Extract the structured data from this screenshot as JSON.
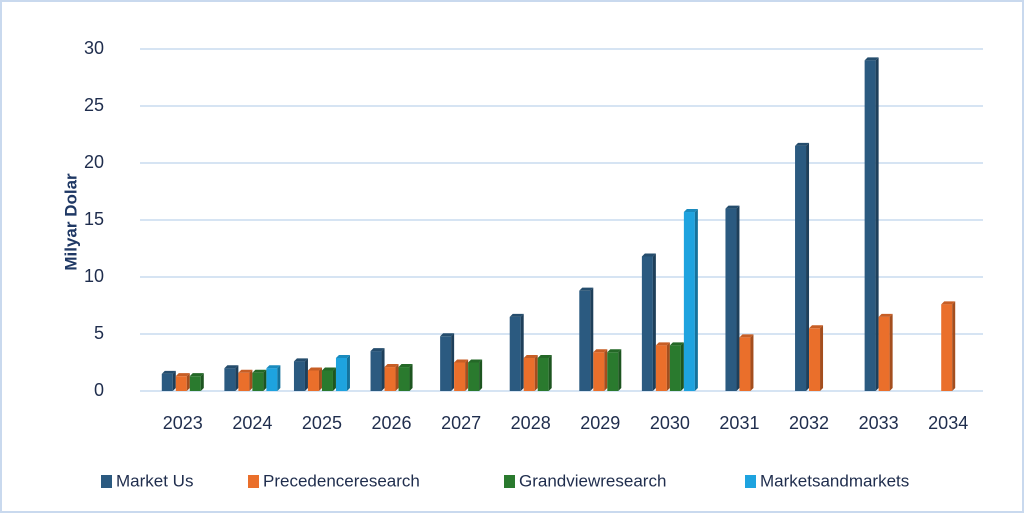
{
  "chart_data": {
    "type": "bar",
    "y_label": "Milyar Dolar",
    "categories": [
      "2023",
      "2024",
      "2025",
      "2026",
      "2027",
      "2028",
      "2029",
      "2030",
      "2031",
      "2032",
      "2033",
      "2034"
    ],
    "series": [
      {
        "name": "Market Us",
        "color": "#2b5a80",
        "values": [
          1.5,
          2.0,
          2.6,
          3.5,
          4.8,
          6.5,
          8.8,
          11.8,
          16.0,
          21.5,
          29.0,
          null
        ]
      },
      {
        "name": "Precedenceresearch",
        "color": "#ea6f2b",
        "values": [
          1.3,
          1.6,
          1.8,
          2.1,
          2.5,
          2.9,
          3.4,
          4.0,
          4.7,
          5.5,
          6.5,
          7.6
        ]
      },
      {
        "name": "Grandviewresearch",
        "color": "#2a7a2e",
        "values": [
          1.3,
          1.6,
          1.8,
          2.1,
          2.5,
          2.9,
          3.4,
          4.0,
          null,
          null,
          null,
          null
        ]
      },
      {
        "name": "Marketsandmarkets",
        "color": "#1ea3df",
        "values": [
          null,
          2.0,
          2.9,
          null,
          null,
          null,
          null,
          15.7,
          null,
          null,
          null,
          null
        ]
      }
    ],
    "ylim": [
      0,
      30
    ],
    "yticks": [
      0,
      5,
      10,
      15,
      20,
      25,
      30
    ],
    "grid": true,
    "legend": "bottom"
  }
}
